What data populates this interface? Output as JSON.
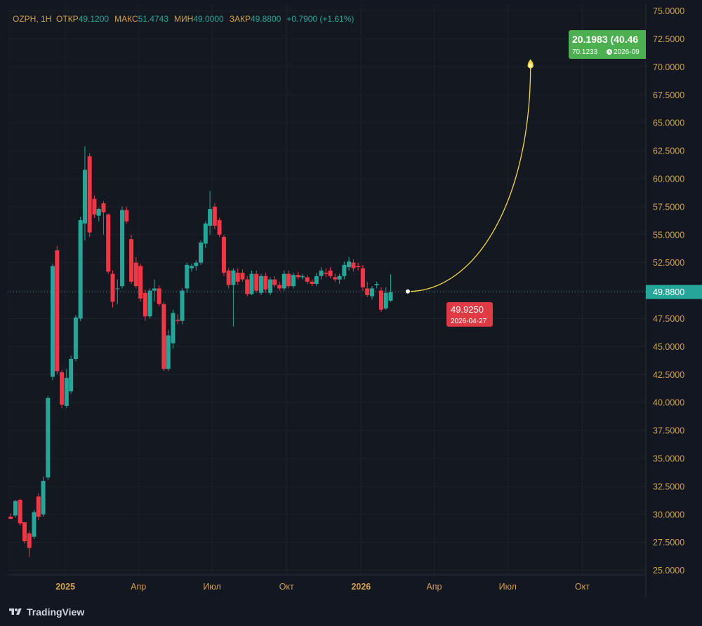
{
  "header": {
    "symbol": "OZPH",
    "interval": "1H",
    "open_label": "ОТКР",
    "open": "49.1200",
    "high_label": "МАКС",
    "high": "51.4743",
    "low_label": "МИН",
    "low": "49.0000",
    "close_label": "ЗАКР",
    "close": "49.8800",
    "change": "+0.7900 (+1.61%)"
  },
  "branding": {
    "name": "TradingView"
  },
  "colors": {
    "up": "#26a69a",
    "down": "#f23645",
    "bg": "#131722",
    "grid": "#1f2230",
    "axis_text": "#d1a04a",
    "projection": "#f5d742",
    "target": "#4caf50"
  },
  "price_marker": {
    "price": "49.8800"
  },
  "point_a": {
    "price": "49.9250",
    "date": "2026-04-27"
  },
  "point_b": {
    "change": "20.1983 (40.46",
    "price": "70.1233",
    "date": "2026-09"
  },
  "chart_data": {
    "type": "candlestick",
    "y_ticks": [
      "75.0000",
      "72.5000",
      "70.0000",
      "67.5000",
      "65.0000",
      "62.5000",
      "60.0000",
      "57.5000",
      "55.0000",
      "52.5000",
      "50.0000",
      "47.5000",
      "45.0000",
      "42.5000",
      "40.0000",
      "37.5000",
      "35.0000",
      "32.5000",
      "30.0000",
      "27.5000",
      "25.0000"
    ],
    "ylim": [
      24.6,
      75.6
    ],
    "x_ticks": [
      {
        "label": "2025",
        "t": 2025.0,
        "bold": true
      },
      {
        "label": "Апр",
        "t": 2025.247
      },
      {
        "label": "Июл",
        "t": 2025.496
      },
      {
        "label": "Окт",
        "t": 2025.748
      },
      {
        "label": "2026",
        "t": 2026.0,
        "bold": true
      },
      {
        "label": "Апр",
        "t": 2026.247
      },
      {
        "label": "Июл",
        "t": 2026.496
      },
      {
        "label": "Окт",
        "t": 2026.748
      }
    ],
    "xlim": [
      2024.805,
      2026.963
    ],
    "current_price": 49.88,
    "candles": [
      {
        "t": 2024.815,
        "o": 29.8,
        "h": 30.1,
        "l": 29.6,
        "c": 29.6
      },
      {
        "t": 2024.831,
        "o": 29.9,
        "h": 31.3,
        "l": 29.7,
        "c": 31.2
      },
      {
        "t": 2024.847,
        "o": 31.3,
        "h": 31.4,
        "l": 29.0,
        "c": 29.2
      },
      {
        "t": 2024.862,
        "o": 29.3,
        "h": 29.3,
        "l": 27.4,
        "c": 27.6
      },
      {
        "t": 2024.878,
        "o": 28.3,
        "h": 28.5,
        "l": 26.2,
        "c": 27.0
      },
      {
        "t": 2024.894,
        "o": 28.0,
        "h": 30.4,
        "l": 27.8,
        "c": 30.2
      },
      {
        "t": 2024.909,
        "o": 31.6,
        "h": 31.9,
        "l": 29.5,
        "c": 29.8
      },
      {
        "t": 2024.925,
        "o": 30.0,
        "h": 33.4,
        "l": 29.8,
        "c": 33.0
      },
      {
        "t": 2024.941,
        "o": 33.3,
        "h": 40.6,
        "l": 33.1,
        "c": 40.4
      },
      {
        "t": 2024.957,
        "o": 42.3,
        "h": 52.4,
        "l": 42.0,
        "c": 52.2
      },
      {
        "t": 2024.972,
        "o": 53.6,
        "h": 54.0,
        "l": 42.5,
        "c": 42.8
      },
      {
        "t": 2024.988,
        "o": 42.7,
        "h": 42.9,
        "l": 39.5,
        "c": 39.8
      },
      {
        "t": 2025.004,
        "o": 39.7,
        "h": 43.0,
        "l": 39.5,
        "c": 42.2
      },
      {
        "t": 2025.019,
        "o": 41.0,
        "h": 44.2,
        "l": 40.8,
        "c": 43.9
      },
      {
        "t": 2025.035,
        "o": 43.9,
        "h": 47.8,
        "l": 43.7,
        "c": 47.6
      },
      {
        "t": 2025.051,
        "o": 47.5,
        "h": 56.6,
        "l": 47.3,
        "c": 56.3
      },
      {
        "t": 2025.066,
        "o": 56.0,
        "h": 62.9,
        "l": 54.5,
        "c": 60.8
      },
      {
        "t": 2025.082,
        "o": 62.0,
        "h": 62.3,
        "l": 54.8,
        "c": 55.2
      },
      {
        "t": 2025.098,
        "o": 58.2,
        "h": 58.5,
        "l": 56.5,
        "c": 56.8
      },
      {
        "t": 2025.113,
        "o": 56.7,
        "h": 57.4,
        "l": 56.2,
        "c": 57.3
      },
      {
        "t": 2025.129,
        "o": 57.8,
        "h": 58.0,
        "l": 55.0,
        "c": 57.0
      },
      {
        "t": 2025.145,
        "o": 56.8,
        "h": 56.9,
        "l": 51.5,
        "c": 51.7
      },
      {
        "t": 2025.16,
        "o": 51.5,
        "h": 51.8,
        "l": 48.5,
        "c": 49.0
      },
      {
        "t": 2025.176,
        "o": 50.2,
        "h": 51.0,
        "l": 48.8,
        "c": 50.2
      },
      {
        "t": 2025.192,
        "o": 50.4,
        "h": 57.5,
        "l": 50.2,
        "c": 57.2
      },
      {
        "t": 2025.207,
        "o": 57.2,
        "h": 57.5,
        "l": 56.0,
        "c": 56.2
      },
      {
        "t": 2025.223,
        "o": 54.6,
        "h": 55.0,
        "l": 50.6,
        "c": 50.8
      },
      {
        "t": 2025.239,
        "o": 52.5,
        "h": 53.0,
        "l": 50.2,
        "c": 50.4
      },
      {
        "t": 2025.254,
        "o": 52.2,
        "h": 52.4,
        "l": 49.0,
        "c": 49.3
      },
      {
        "t": 2025.27,
        "o": 49.8,
        "h": 50.1,
        "l": 47.3,
        "c": 47.7
      },
      {
        "t": 2025.286,
        "o": 47.7,
        "h": 50.2,
        "l": 47.5,
        "c": 50.0
      },
      {
        "t": 2025.301,
        "o": 50.0,
        "h": 51.0,
        "l": 49.0,
        "c": 50.2
      },
      {
        "t": 2025.317,
        "o": 50.2,
        "h": 50.5,
        "l": 48.6,
        "c": 48.8
      },
      {
        "t": 2025.333,
        "o": 48.8,
        "h": 49.0,
        "l": 42.8,
        "c": 43.0
      },
      {
        "t": 2025.348,
        "o": 43.0,
        "h": 46.5,
        "l": 42.8,
        "c": 46.0
      },
      {
        "t": 2025.364,
        "o": 45.3,
        "h": 48.3,
        "l": 44.8,
        "c": 48.0
      },
      {
        "t": 2025.38,
        "o": 47.4,
        "h": 47.9,
        "l": 47.0,
        "c": 47.3
      },
      {
        "t": 2025.395,
        "o": 47.3,
        "h": 50.2,
        "l": 47.0,
        "c": 50.0
      },
      {
        "t": 2025.411,
        "o": 50.2,
        "h": 52.5,
        "l": 49.8,
        "c": 52.3
      },
      {
        "t": 2025.427,
        "o": 52.0,
        "h": 52.4,
        "l": 51.7,
        "c": 52.2
      },
      {
        "t": 2025.442,
        "o": 52.2,
        "h": 52.7,
        "l": 51.8,
        "c": 52.5
      },
      {
        "t": 2025.458,
        "o": 52.5,
        "h": 54.5,
        "l": 52.3,
        "c": 54.3
      },
      {
        "t": 2025.474,
        "o": 54.2,
        "h": 56.2,
        "l": 53.8,
        "c": 56.0
      },
      {
        "t": 2025.489,
        "o": 55.8,
        "h": 58.9,
        "l": 55.0,
        "c": 57.3
      },
      {
        "t": 2025.505,
        "o": 57.5,
        "h": 57.8,
        "l": 55.5,
        "c": 55.8
      },
      {
        "t": 2025.521,
        "o": 56.3,
        "h": 56.5,
        "l": 54.8,
        "c": 55.0
      },
      {
        "t": 2025.536,
        "o": 54.8,
        "h": 55.0,
        "l": 51.3,
        "c": 51.6
      },
      {
        "t": 2025.552,
        "o": 51.8,
        "h": 52.0,
        "l": 50.2,
        "c": 50.5
      },
      {
        "t": 2025.568,
        "o": 50.5,
        "h": 52.0,
        "l": 46.8,
        "c": 51.8
      },
      {
        "t": 2025.583,
        "o": 51.6,
        "h": 52.0,
        "l": 50.5,
        "c": 50.8
      },
      {
        "t": 2025.599,
        "o": 51.6,
        "h": 51.9,
        "l": 50.8,
        "c": 51.0
      },
      {
        "t": 2025.615,
        "o": 51.0,
        "h": 51.3,
        "l": 49.5,
        "c": 49.7
      },
      {
        "t": 2025.63,
        "o": 49.7,
        "h": 51.8,
        "l": 49.6,
        "c": 51.5
      },
      {
        "t": 2025.646,
        "o": 51.5,
        "h": 51.8,
        "l": 49.8,
        "c": 50.0
      },
      {
        "t": 2025.662,
        "o": 49.8,
        "h": 51.5,
        "l": 49.6,
        "c": 51.3
      },
      {
        "t": 2025.677,
        "o": 51.3,
        "h": 51.6,
        "l": 49.8,
        "c": 50.1
      },
      {
        "t": 2025.693,
        "o": 49.8,
        "h": 51.2,
        "l": 49.6,
        "c": 51.0
      },
      {
        "t": 2025.708,
        "o": 51.0,
        "h": 51.3,
        "l": 50.3,
        "c": 50.5
      },
      {
        "t": 2025.724,
        "o": 50.5,
        "h": 50.8,
        "l": 50.0,
        "c": 50.2
      },
      {
        "t": 2025.74,
        "o": 50.2,
        "h": 51.8,
        "l": 50.0,
        "c": 51.5
      },
      {
        "t": 2025.755,
        "o": 51.5,
        "h": 51.8,
        "l": 50.2,
        "c": 50.4
      },
      {
        "t": 2025.771,
        "o": 50.4,
        "h": 51.6,
        "l": 50.2,
        "c": 51.4
      },
      {
        "t": 2025.787,
        "o": 51.4,
        "h": 51.7,
        "l": 51.0,
        "c": 51.2
      },
      {
        "t": 2025.802,
        "o": 51.2,
        "h": 51.5,
        "l": 51.0,
        "c": 51.3
      },
      {
        "t": 2025.818,
        "o": 51.2,
        "h": 51.4,
        "l": 50.6,
        "c": 50.8
      },
      {
        "t": 2025.834,
        "o": 50.8,
        "h": 51.0,
        "l": 50.4,
        "c": 50.6
      },
      {
        "t": 2025.849,
        "o": 50.6,
        "h": 51.6,
        "l": 50.4,
        "c": 51.3
      },
      {
        "t": 2025.865,
        "o": 51.3,
        "h": 52.1,
        "l": 51.0,
        "c": 51.8
      },
      {
        "t": 2025.881,
        "o": 51.6,
        "h": 52.0,
        "l": 51.2,
        "c": 51.5
      },
      {
        "t": 2025.896,
        "o": 51.8,
        "h": 52.1,
        "l": 51.1,
        "c": 51.3
      },
      {
        "t": 2025.912,
        "o": 51.2,
        "h": 51.5,
        "l": 50.8,
        "c": 51.0
      },
      {
        "t": 2025.927,
        "o": 51.0,
        "h": 51.5,
        "l": 50.6,
        "c": 51.3
      },
      {
        "t": 2025.943,
        "o": 51.3,
        "h": 52.6,
        "l": 51.0,
        "c": 52.3
      },
      {
        "t": 2025.959,
        "o": 52.1,
        "h": 53.0,
        "l": 51.8,
        "c": 52.6
      },
      {
        "t": 2025.974,
        "o": 52.5,
        "h": 52.8,
        "l": 51.7,
        "c": 52.0
      },
      {
        "t": 2025.99,
        "o": 52.2,
        "h": 52.5,
        "l": 51.8,
        "c": 52.1
      },
      {
        "t": 2026.006,
        "o": 52.0,
        "h": 52.3,
        "l": 50.0,
        "c": 50.3
      },
      {
        "t": 2026.021,
        "o": 50.2,
        "h": 50.8,
        "l": 49.4,
        "c": 49.6
      },
      {
        "t": 2026.037,
        "o": 49.5,
        "h": 50.4,
        "l": 49.2,
        "c": 50.2
      },
      {
        "t": 2026.053,
        "o": 50.5,
        "h": 50.8,
        "l": 50.2,
        "c": 50.6
      },
      {
        "t": 2026.068,
        "o": 50.0,
        "h": 50.3,
        "l": 48.1,
        "c": 48.3
      },
      {
        "t": 2026.084,
        "o": 48.4,
        "h": 50.3,
        "l": 48.3,
        "c": 49.8
      },
      {
        "t": 2026.1,
        "o": 49.1,
        "h": 51.47,
        "l": 49.0,
        "c": 49.88
      }
    ]
  }
}
